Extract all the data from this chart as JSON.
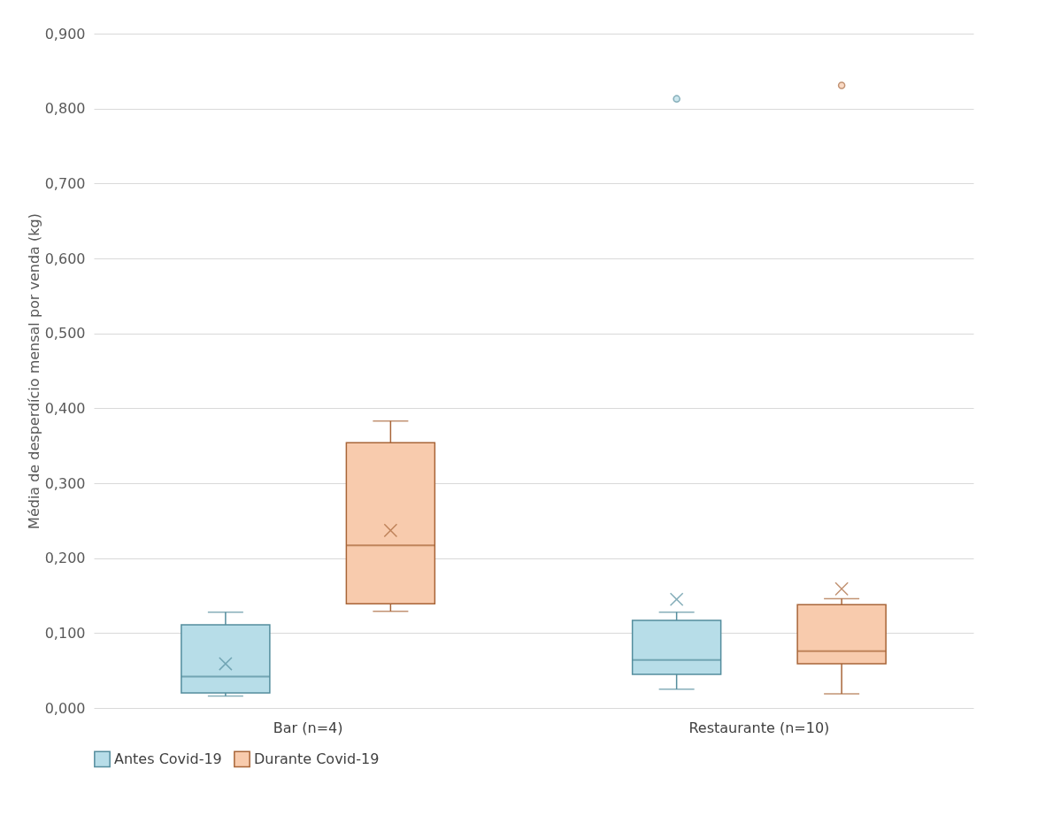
{
  "chart_data": {
    "type": "box",
    "ylabel": "Média de desperdício mensal por venda (kg)",
    "categories": [
      "Bar (n=4)",
      "Restaurante (n=10)"
    ],
    "series": [
      {
        "name": "Antes Covid-19",
        "color": "#b7dde8",
        "boxes": [
          {
            "low": 0.016,
            "q1": 0.02,
            "median": 0.042,
            "q3": 0.111,
            "high": 0.128,
            "mean": 0.059
          },
          {
            "low": 0.025,
            "q1": 0.045,
            "median": 0.064,
            "q3": 0.117,
            "high": 0.128,
            "mean": 0.145,
            "outliers": [
              0.813
            ]
          }
        ]
      },
      {
        "name": "Durante Covid-19",
        "color": "#f8cbad",
        "boxes": [
          {
            "low": 0.129,
            "q1": 0.139,
            "median": 0.217,
            "q3": 0.354,
            "high": 0.383,
            "mean": 0.237
          },
          {
            "low": 0.019,
            "q1": 0.059,
            "median": 0.076,
            "q3": 0.138,
            "high": 0.146,
            "mean": 0.159,
            "outliers": [
              0.831
            ]
          }
        ]
      }
    ],
    "ylim": [
      0,
      0.9
    ],
    "yticks": [
      {
        "value": 0,
        "label": "0,000"
      },
      {
        "value": 0.1,
        "label": "0,100"
      },
      {
        "value": 0.2,
        "label": "0,200"
      },
      {
        "value": 0.3,
        "label": "0,300"
      },
      {
        "value": 0.4,
        "label": "0,400"
      },
      {
        "value": 0.5,
        "label": "0,500"
      },
      {
        "value": 0.6,
        "label": "0,600"
      },
      {
        "value": 0.7,
        "label": "0,700"
      },
      {
        "value": 0.8,
        "label": "0,800"
      },
      {
        "value": 0.9,
        "label": "0,900"
      }
    ],
    "grid": "y",
    "legend": "bottom"
  }
}
